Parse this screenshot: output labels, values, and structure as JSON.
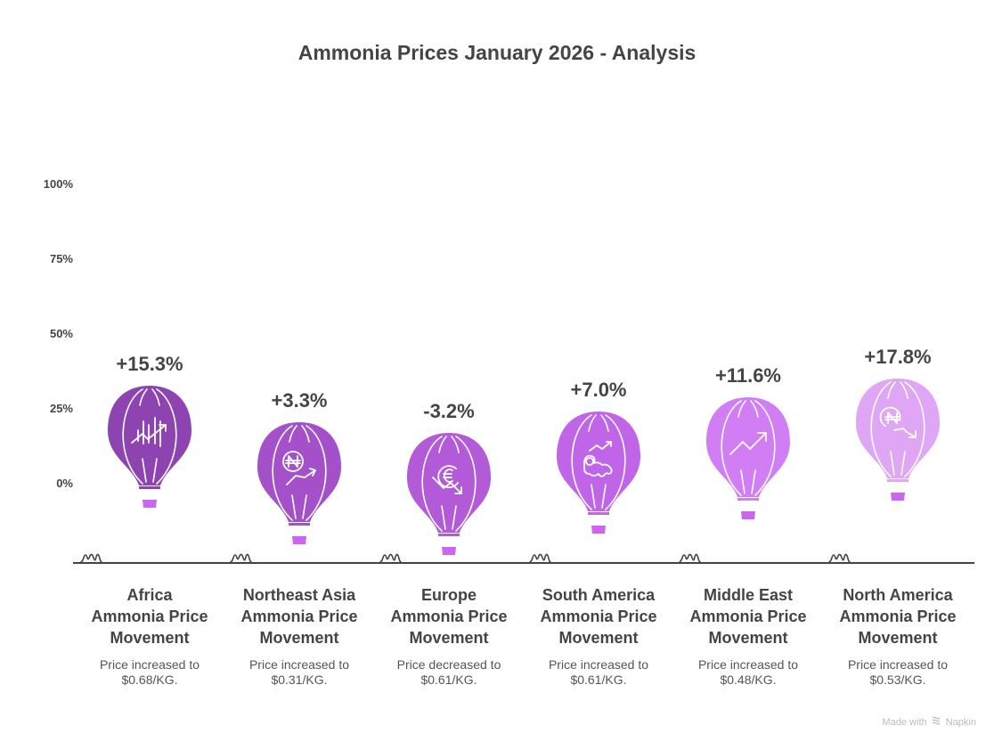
{
  "chart_data": {
    "type": "bar",
    "title": "Ammonia Prices January 2026 - Analysis",
    "xlabel": "",
    "ylabel": "",
    "ylim": [
      0,
      100
    ],
    "y_ticks": [
      "100%",
      "75%",
      "50%",
      "25%",
      "0%"
    ],
    "grid": false,
    "categories": [
      "Africa Ammonia Price Movement",
      "Northeast Asia Ammonia Price Movement",
      "Europe Ammonia Price Movement",
      "South America Ammonia Price Movement",
      "Middle East Ammonia Price Movement",
      "North America Ammonia Price Movement"
    ],
    "values": [
      15.3,
      3.3,
      -3.2,
      7.0,
      11.6,
      17.8
    ],
    "value_labels": [
      "+15.3%",
      "+3.3%",
      "-3.2%",
      "+7.0%",
      "+11.6%",
      "+17.8%"
    ],
    "items": [
      {
        "name": "Africa\nAmmonia Price\nMovement",
        "line1": "Africa",
        "line2": "Ammonia Price",
        "line3": "Movement",
        "value": 15.3,
        "label": "+15.3%",
        "desc1": "Price increased to",
        "desc2": "$0.68/KG.",
        "price": 0.68,
        "direction": "increased",
        "icon": "bar-chart-trend-up-icon",
        "color": "#8e44b0"
      },
      {
        "name": "Northeast Asia\nAmmonia Price\nMovement",
        "line1": "Northeast Asia",
        "line2": "Ammonia Price",
        "line3": "Movement",
        "value": 3.3,
        "label": "+3.3%",
        "desc1": "Price increased to",
        "desc2": "$0.31/KG.",
        "price": 0.31,
        "direction": "increased",
        "icon": "naira-trend-up-icon",
        "color": "#a450c8"
      },
      {
        "name": "Europe\nAmmonia Price\nMovement",
        "line1": "Europe",
        "line2": "Ammonia Price",
        "line3": "Movement",
        "value": -3.2,
        "label": "-3.2%",
        "desc1": "Price decreased to",
        "desc2": "$0.61/KG.",
        "price": 0.61,
        "direction": "decreased",
        "icon": "euro-trend-down-icon",
        "color": "#b25ad8"
      },
      {
        "name": "South America\nAmmonia Price\nMovement",
        "line1": "South America",
        "line2": "Ammonia Price",
        "line3": "Movement",
        "value": 7.0,
        "label": "+7.0%",
        "desc1": "Price increased to",
        "desc2": "$0.61/KG.",
        "price": 0.61,
        "direction": "increased",
        "icon": "south-america-trend-up-icon",
        "color": "#c064e8"
      },
      {
        "name": "Middle East\nAmmonia Price\nMovement",
        "line1": "Middle East",
        "line2": "Ammonia Price",
        "line3": "Movement",
        "value": 11.6,
        "label": "+11.6%",
        "desc1": "Price increased to",
        "desc2": "$0.48/KG.",
        "price": 0.48,
        "direction": "increased",
        "icon": "trend-up-icon",
        "color": "#d17ef5"
      },
      {
        "name": "North America\nAmmonia Price\nMovement",
        "line1": "North America",
        "line2": "Ammonia Price",
        "line3": "Movement",
        "value": 17.8,
        "label": "+17.8%",
        "desc1": "Price increased to",
        "desc2": "$0.53/KG.",
        "price": 0.53,
        "direction": "increased",
        "icon": "naira-trend-down-icon",
        "color": "#dea6f5"
      }
    ],
    "basket_color": "#cc66f2",
    "ground_color": "#444444"
  },
  "footer": {
    "made_with": "Made with",
    "brand": "Napkin"
  }
}
